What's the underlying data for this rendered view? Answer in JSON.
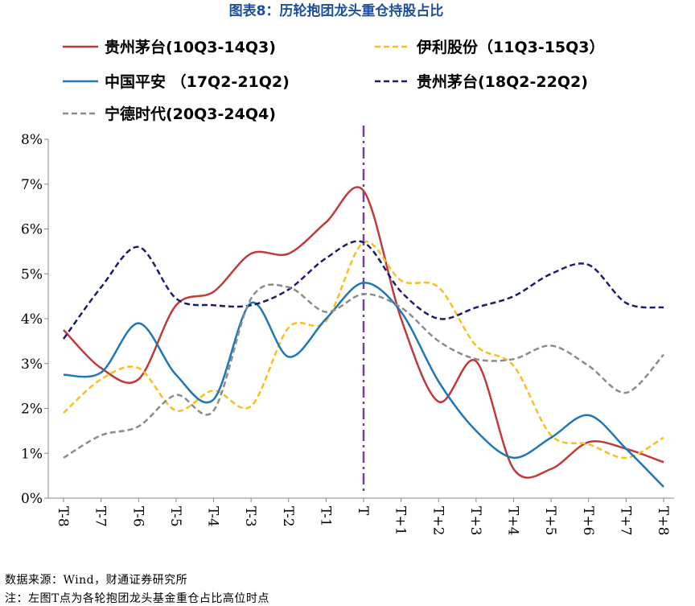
{
  "chart_data": {
    "type": "line",
    "title": "图表8：历轮抱团龙头重仓持股占比",
    "categories": [
      "T-8",
      "T-7",
      "T-6",
      "T-5",
      "T-4",
      "T-3",
      "T-2",
      "T-1",
      "T",
      "T+1",
      "T+2",
      "T+3",
      "T+4",
      "T+5",
      "T+6",
      "T+7",
      "T+8"
    ],
    "ylim": [
      0,
      8
    ],
    "yticks": [
      0,
      1,
      2,
      3,
      4,
      5,
      6,
      7,
      8
    ],
    "ytick_labels": [
      "0%",
      "1%",
      "2%",
      "3%",
      "4%",
      "5%",
      "6%",
      "7%",
      "8%"
    ],
    "xlabel": "",
    "ylabel": "",
    "grid": false,
    "marker_category": "T",
    "series": [
      {
        "name": "贵州茅台(10Q3-14Q3)",
        "color": "#c0393b",
        "dash": "solid",
        "values": [
          3.75,
          2.9,
          2.65,
          4.3,
          4.6,
          5.45,
          5.45,
          6.15,
          6.85,
          4.0,
          2.15,
          3.05,
          0.65,
          0.65,
          1.25,
          1.1,
          0.8
        ]
      },
      {
        "name": "伊利股份（11Q3-15Q3）",
        "color": "#f5c020",
        "dash": "dashed",
        "values": [
          1.9,
          2.65,
          2.9,
          1.95,
          2.4,
          2.05,
          3.8,
          3.95,
          5.7,
          4.85,
          4.7,
          3.4,
          2.95,
          1.4,
          1.2,
          0.9,
          1.35
        ]
      },
      {
        "name": "中国平安 （17Q2-21Q2)",
        "color": "#1f77b4",
        "dash": "solid",
        "values": [
          2.75,
          2.8,
          3.9,
          2.75,
          2.2,
          4.35,
          3.15,
          4.0,
          4.8,
          4.15,
          2.6,
          1.5,
          0.9,
          1.35,
          1.85,
          1.1,
          0.25
        ]
      },
      {
        "name": "贵州茅台(18Q2-22Q2)",
        "color": "#1b1f6b",
        "dash": "dashed",
        "values": [
          3.55,
          4.7,
          5.6,
          4.45,
          4.3,
          4.3,
          4.65,
          5.35,
          5.7,
          4.6,
          4.0,
          4.25,
          4.5,
          5.0,
          5.2,
          4.35,
          4.25
        ]
      },
      {
        "name": "宁德时代(20Q3-24Q4)",
        "color": "#8c8c8c",
        "dash": "dashed",
        "values": [
          0.9,
          1.4,
          1.6,
          2.3,
          1.95,
          4.45,
          4.7,
          4.15,
          4.55,
          4.25,
          3.5,
          3.1,
          3.1,
          3.4,
          2.95,
          2.35,
          3.2
        ]
      }
    ]
  },
  "footer": {
    "source": "数据来源：Wind，财通证券研究所",
    "note": "注：左图T点为各轮抱团龙头基金重仓占比高位时点"
  }
}
